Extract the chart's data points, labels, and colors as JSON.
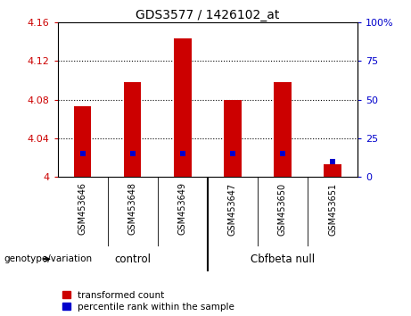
{
  "title": "GDS3577 / 1426102_at",
  "samples": [
    "GSM453646",
    "GSM453648",
    "GSM453649",
    "GSM453647",
    "GSM453650",
    "GSM453651"
  ],
  "transformed_counts": [
    4.073,
    4.098,
    4.143,
    4.08,
    4.098,
    4.013
  ],
  "percentile_ranks": [
    15,
    15,
    15,
    15,
    15,
    10
  ],
  "y_min": 4.0,
  "y_max": 4.16,
  "y_ticks": [
    4.0,
    4.04,
    4.08,
    4.12,
    4.16
  ],
  "y_tick_labels": [
    "4",
    "4.04",
    "4.08",
    "4.12",
    "4.16"
  ],
  "right_y_ticks": [
    0,
    25,
    50,
    75,
    100
  ],
  "right_y_labels": [
    "0",
    "25",
    "50",
    "75",
    "100%"
  ],
  "bar_color": "#cc0000",
  "blue_color": "#0000cc",
  "bg_color": "#d0d0d0",
  "green_color": "#90ee90",
  "plot_bg": "#ffffff",
  "bar_width": 0.35,
  "legend_items": [
    "transformed count",
    "percentile rank within the sample"
  ],
  "genotype_label": "genotype/variation",
  "group_divider": 2.5,
  "grid_lines": [
    4.04,
    4.08,
    4.12
  ]
}
